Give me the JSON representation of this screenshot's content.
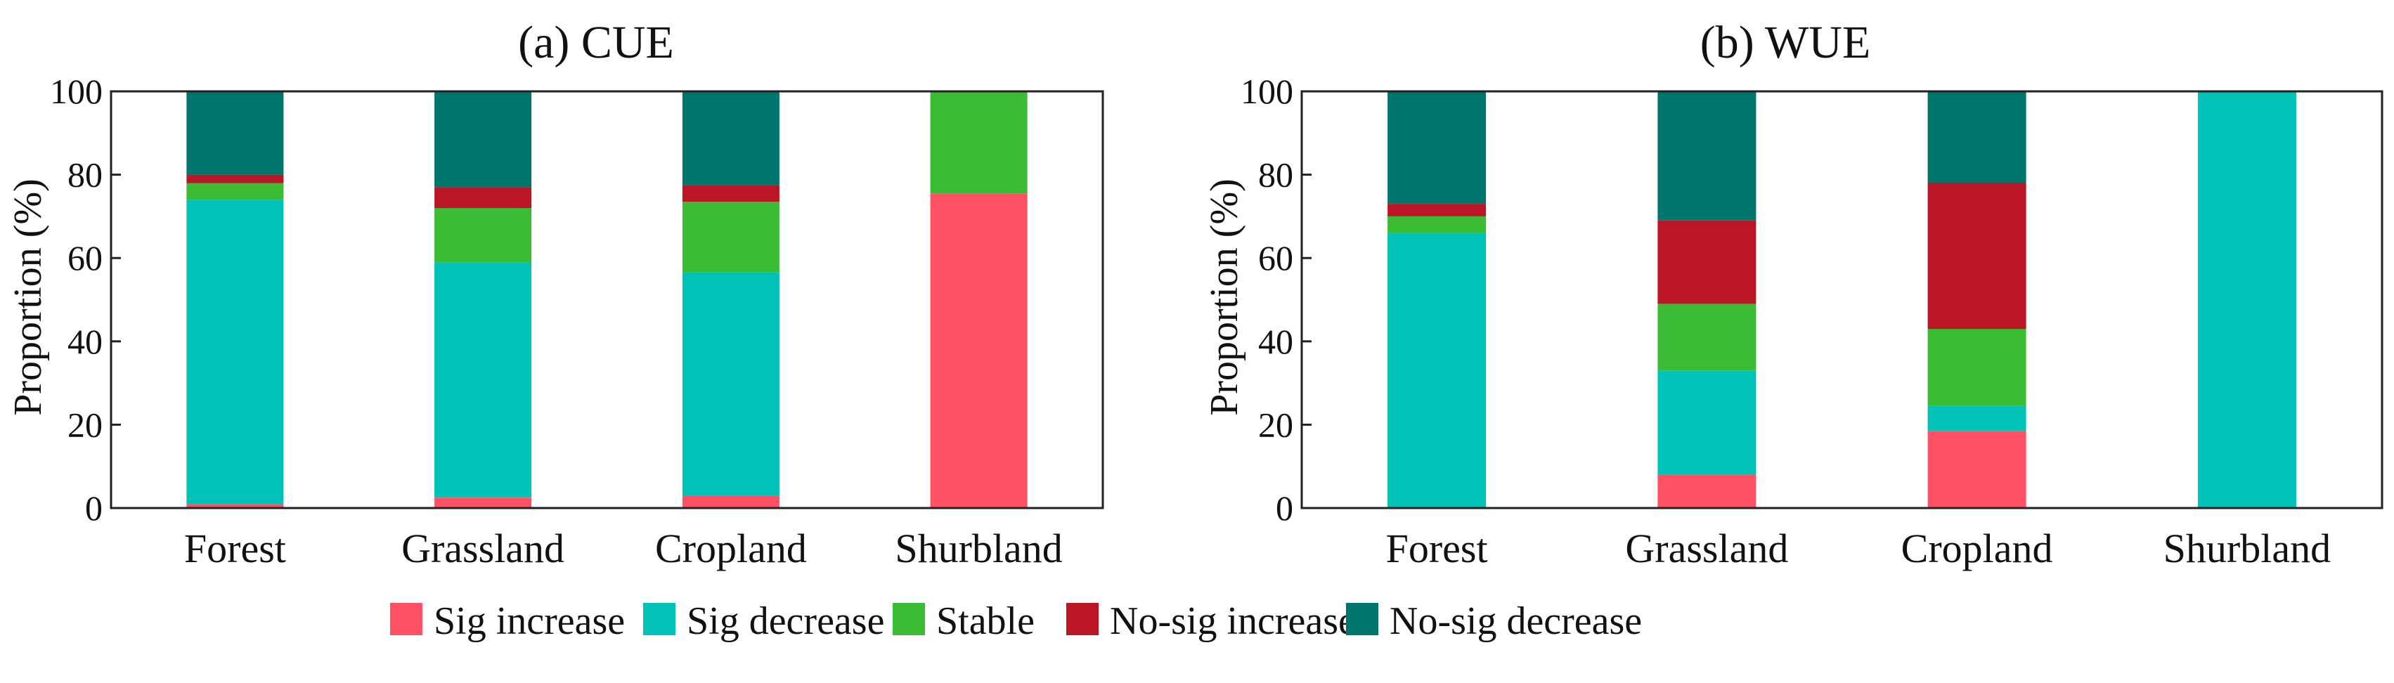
{
  "colors": {
    "sig_increase": "#ff5163",
    "sig_decrease": "#00c2b6",
    "stable": "#3cbb35",
    "nosig_increase": "#bc1526",
    "nosig_decrease": "#00756b"
  },
  "legend": [
    {
      "key": "sig_increase",
      "label": "Sig increase"
    },
    {
      "key": "sig_decrease",
      "label": "Sig decrease"
    },
    {
      "key": "stable",
      "label": "Stable"
    },
    {
      "key": "nosig_increase",
      "label": "No-sig increase"
    },
    {
      "key": "nosig_decrease",
      "label": "No-sig decrease"
    }
  ],
  "chart_data": [
    {
      "type": "bar",
      "stacked": true,
      "title": "(a) CUE",
      "ylabel": "Proportion (%)",
      "xlabel": "",
      "ylim": [
        0,
        100
      ],
      "yticks": [
        "0",
        "20",
        "40",
        "60",
        "80",
        "100"
      ],
      "categories": [
        "Forest",
        "Grassland",
        "Cropland",
        "Shurbland"
      ],
      "series": [
        {
          "key": "sig_increase",
          "name": "Sig increase",
          "values": [
            1,
            2.5,
            3,
            75.5
          ]
        },
        {
          "key": "sig_decrease",
          "name": "Sig decrease",
          "values": [
            73,
            56.5,
            53.5,
            0
          ]
        },
        {
          "key": "stable",
          "name": "Stable",
          "values": [
            4,
            13,
            17,
            24.5
          ]
        },
        {
          "key": "nosig_increase",
          "name": "No-sig increase",
          "values": [
            2,
            5,
            4,
            0
          ]
        },
        {
          "key": "nosig_decrease",
          "name": "No-sig decrease",
          "values": [
            20,
            23,
            22.5,
            0
          ]
        }
      ]
    },
    {
      "type": "bar",
      "stacked": true,
      "title": "(b) WUE",
      "ylabel": "Proportion (%)",
      "xlabel": "",
      "ylim": [
        0,
        100
      ],
      "yticks": [
        "0",
        "20",
        "40",
        "60",
        "80",
        "100"
      ],
      "categories": [
        "Forest",
        "Grassland",
        "Cropland",
        "Shurbland"
      ],
      "series": [
        {
          "key": "sig_increase",
          "name": "Sig increase",
          "values": [
            0,
            8,
            18.5,
            0
          ]
        },
        {
          "key": "sig_decrease",
          "name": "Sig decrease",
          "values": [
            66,
            25,
            6,
            100
          ]
        },
        {
          "key": "stable",
          "name": "Stable",
          "values": [
            4,
            16,
            18.5,
            0
          ]
        },
        {
          "key": "nosig_increase",
          "name": "No-sig increase",
          "values": [
            3,
            20,
            35,
            0
          ]
        },
        {
          "key": "nosig_decrease",
          "name": "No-sig decrease",
          "values": [
            27,
            31,
            22,
            0
          ]
        }
      ]
    }
  ]
}
